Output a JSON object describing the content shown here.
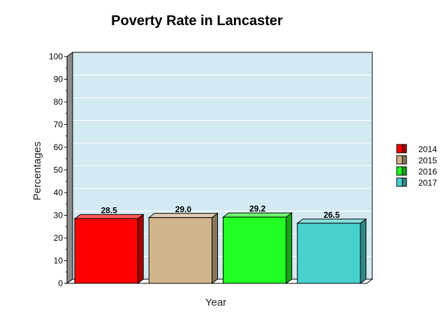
{
  "chart_data": {
    "type": "bar",
    "title": "Poverty Rate in Lancaster",
    "xlabel": "Year",
    "ylabel": "Percentages",
    "ylim": [
      0,
      100
    ],
    "yticks": [
      0,
      10,
      20,
      30,
      40,
      50,
      60,
      70,
      80,
      90,
      100
    ],
    "grid": true,
    "legend_position": "right",
    "background_color": "#d3eaf2",
    "series": [
      {
        "name": "2014",
        "value": 28.5,
        "label": "28.5",
        "color": "#ff0000"
      },
      {
        "name": "2015",
        "value": 29.0,
        "label": "29.0",
        "color": "#d2b48c"
      },
      {
        "name": "2016",
        "value": 29.2,
        "label": "29.2",
        "color": "#22ff22"
      },
      {
        "name": "2017",
        "value": 26.5,
        "label": "26.5",
        "color": "#48d1cc"
      }
    ]
  }
}
